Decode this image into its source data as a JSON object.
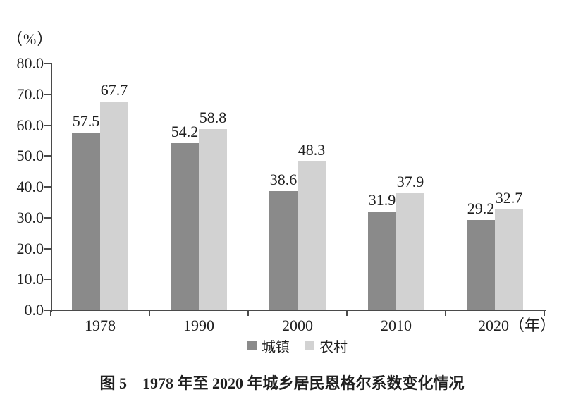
{
  "figure": {
    "caption": "图 5　1978 年至 2020 年城乡居民恩格尔系数变化情况"
  },
  "chart_data": {
    "type": "bar",
    "title": "图 5　1978 年至 2020 年城乡居民恩格尔系数变化情况",
    "categories": [
      "1978",
      "1990",
      "2000",
      "2010",
      "2020"
    ],
    "x_unit_suffix": "（年）",
    "series": [
      {
        "key": "urban",
        "name": "城镇",
        "color": "#8a8a8a",
        "values": [
          57.5,
          54.2,
          38.6,
          31.9,
          29.2
        ]
      },
      {
        "key": "rural",
        "name": "农村",
        "color": "#d2d2d2",
        "values": [
          67.7,
          58.8,
          48.3,
          37.9,
          32.7
        ]
      }
    ],
    "xlabel": "",
    "ylabel": "（%）",
    "ylim": [
      0,
      80
    ],
    "ytick_step": 10,
    "ytick_decimals": 1,
    "grid": false,
    "value_labels": true,
    "legend_position": "bottom",
    "axis_color": "#4a4a4a",
    "text_color": "#1f1f1f"
  }
}
